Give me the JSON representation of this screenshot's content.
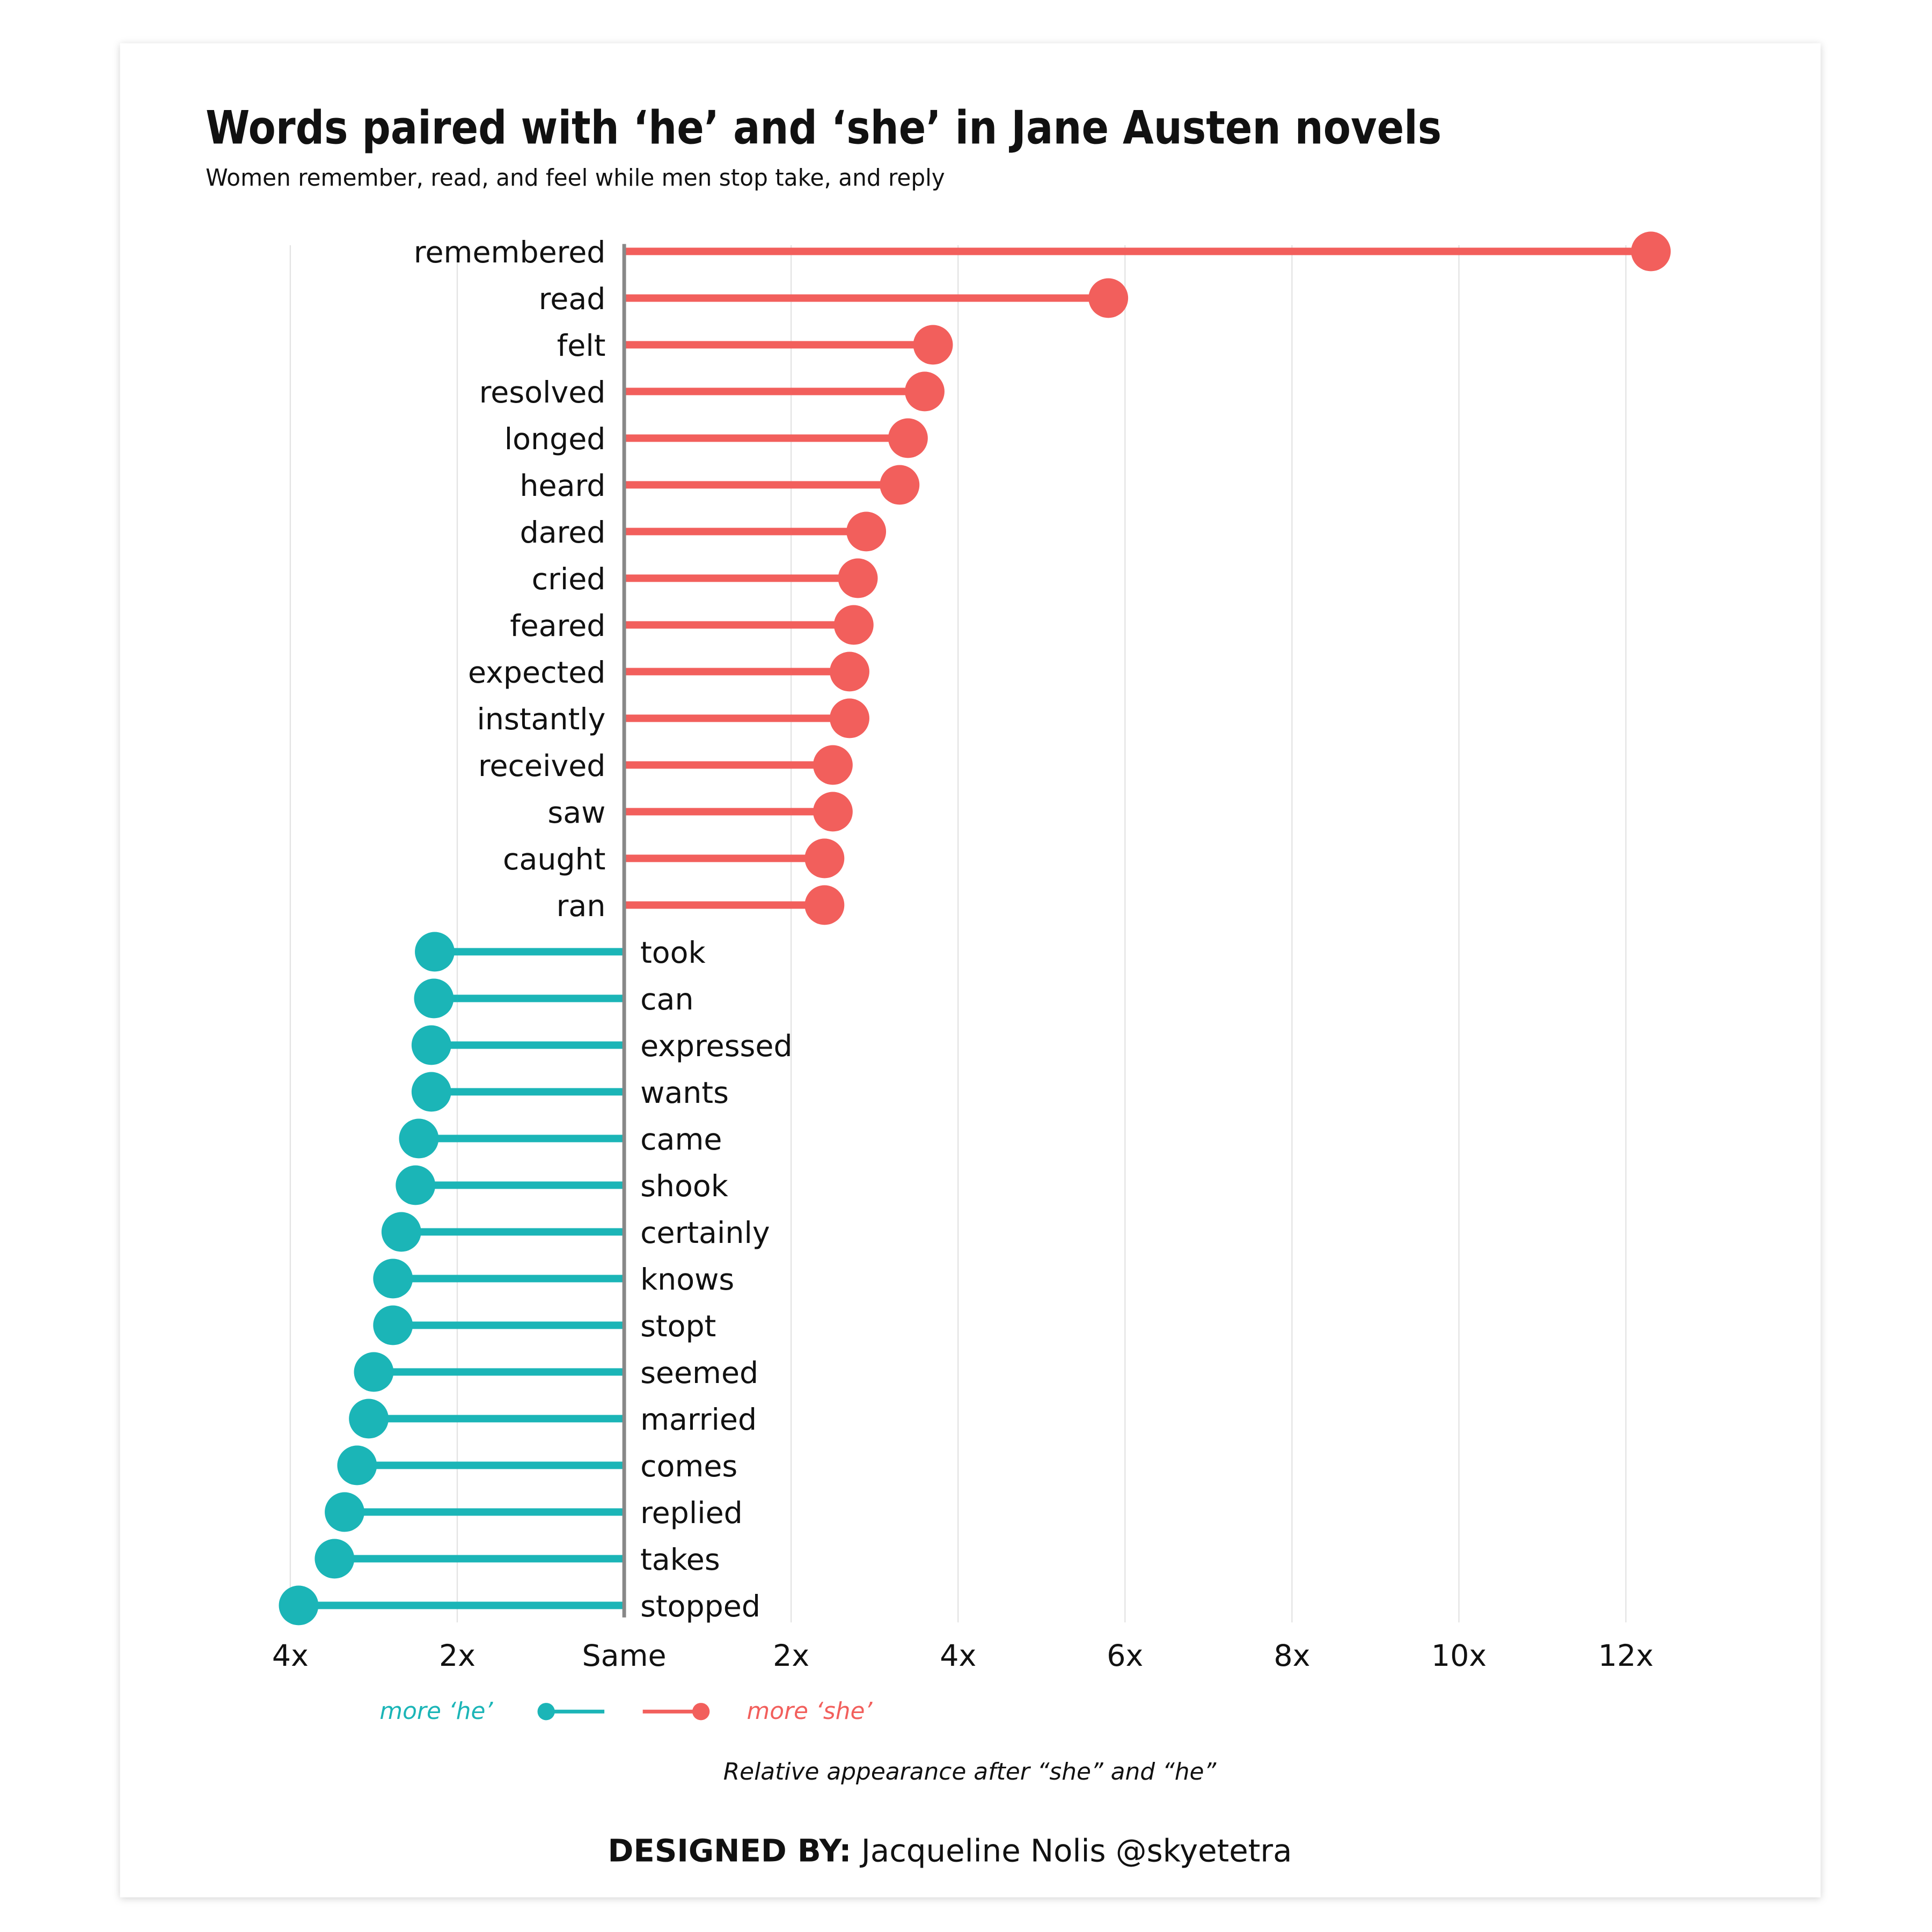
{
  "chart_data": {
    "type": "lollipop",
    "title": "Words paired with ‘he’ and ‘she’ in Jane Austen novels",
    "subtitle": "Women remember, read, and feel while men stop take, and reply",
    "xlabel": "Relative appearance after “she” and “he”",
    "x_ticks": [
      {
        "value": -4,
        "label": "4x"
      },
      {
        "value": -2,
        "label": "2x"
      },
      {
        "value": 0,
        "label": "Same"
      },
      {
        "value": 2,
        "label": "2x"
      },
      {
        "value": 4,
        "label": "4x"
      },
      {
        "value": 6,
        "label": "6x"
      },
      {
        "value": 8,
        "label": "8x"
      },
      {
        "value": 10,
        "label": "10x"
      },
      {
        "value": 12,
        "label": "12x"
      }
    ],
    "xlim": [
      -4,
      12
    ],
    "grid": "vertical",
    "colors": {
      "she": "#F25F5C",
      "he": "#1BB5B7",
      "grid": "#e3e3e3",
      "zero": "#888888"
    },
    "legend": {
      "he_label": "more ‘he’",
      "she_label": "more ‘she’",
      "placement": "bottom"
    },
    "series": [
      {
        "key": "she",
        "points": [
          {
            "word": "remembered",
            "value": 12.3
          },
          {
            "word": "read",
            "value": 5.8
          },
          {
            "word": "felt",
            "value": 3.7
          },
          {
            "word": "resolved",
            "value": 3.6
          },
          {
            "word": "longed",
            "value": 3.4
          },
          {
            "word": "heard",
            "value": 3.3
          },
          {
            "word": "dared",
            "value": 2.9
          },
          {
            "word": "cried",
            "value": 2.8
          },
          {
            "word": "feared",
            "value": 2.75
          },
          {
            "word": "expected",
            "value": 2.7
          },
          {
            "word": "instantly",
            "value": 2.7
          },
          {
            "word": "received",
            "value": 2.5
          },
          {
            "word": "saw",
            "value": 2.5
          },
          {
            "word": "caught",
            "value": 2.4
          },
          {
            "word": "ran",
            "value": 2.4
          }
        ]
      },
      {
        "key": "he",
        "points": [
          {
            "word": "took",
            "value": 2.27
          },
          {
            "word": "can",
            "value": 2.28
          },
          {
            "word": "expressed",
            "value": 2.31
          },
          {
            "word": "wants",
            "value": 2.31
          },
          {
            "word": "came",
            "value": 2.46
          },
          {
            "word": "shook",
            "value": 2.5
          },
          {
            "word": "certainly",
            "value": 2.67
          },
          {
            "word": "knows",
            "value": 2.77
          },
          {
            "word": "stopt",
            "value": 2.77
          },
          {
            "word": "seemed",
            "value": 3.0
          },
          {
            "word": "married",
            "value": 3.06
          },
          {
            "word": "comes",
            "value": 3.2
          },
          {
            "word": "replied",
            "value": 3.35
          },
          {
            "word": "takes",
            "value": 3.47
          },
          {
            "word": "stopped",
            "value": 3.9
          }
        ]
      }
    ]
  },
  "credit": {
    "label": "DESIGNED BY:",
    "name": "Jacqueline Nolis @skyetetra"
  }
}
